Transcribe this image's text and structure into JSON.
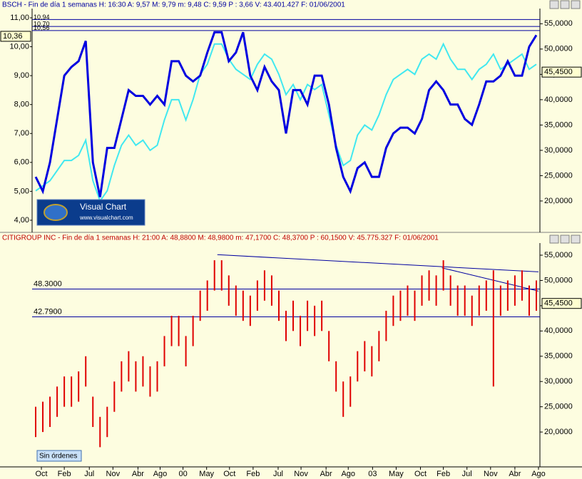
{
  "chart_data": [
    {
      "type": "line",
      "title": "BSCH - Fin de día 1 semanas H: 16:30 A: 9,57 M: 9,79 m: 9,48 C: 9,59 P : 3,66 V: 43.401.427 F: 01/06/2001",
      "xlim": [
        -0.5,
        70.5
      ],
      "ylim": [
        3.58,
        11.32
      ],
      "yticks": [
        {
          "value": 4,
          "label": "4,00"
        },
        {
          "value": 5,
          "label": "5,00"
        },
        {
          "value": 6,
          "label": "6,00"
        },
        {
          "value": 7,
          "label": "7,00"
        },
        {
          "value": 8,
          "label": "8,00"
        },
        {
          "value": 9,
          "label": "9,00"
        },
        {
          "value": 10,
          "label": "10,00"
        },
        {
          "value": 11,
          "label": "11,00"
        }
      ],
      "y2lim": [
        13.8,
        58
      ],
      "y2ticks": [
        {
          "value": 20,
          "label": "20,0000"
        },
        {
          "value": 25,
          "label": "25,0000"
        },
        {
          "value": 30,
          "label": "30,0000"
        },
        {
          "value": 35,
          "label": "35,0000"
        },
        {
          "value": 40,
          "label": "40,0000"
        },
        {
          "value": 45,
          "label": "45,0000"
        },
        {
          "value": 50,
          "label": "50,0000"
        },
        {
          "value": 55,
          "label": "55,0000"
        }
      ],
      "series": [
        {
          "color": "#0000e0",
          "values": [
            5.5,
            5.0,
            6.0,
            7.5,
            9.0,
            9.3,
            9.5,
            10.2,
            6.0,
            4.8,
            6.5,
            6.5,
            7.5,
            8.5,
            8.3,
            8.3,
            8.0,
            8.3,
            8.0,
            9.5,
            9.5,
            9.0,
            8.8,
            9.0,
            9.8,
            10.5,
            10.5,
            9.5,
            9.8,
            10.5,
            9.0,
            8.5,
            9.3,
            8.8,
            8.5,
            7.0,
            8.5,
            8.5,
            8.0,
            9.0,
            9.0,
            8.0,
            6.5,
            5.5,
            5.0,
            5.8,
            6.0,
            5.5,
            5.5,
            6.5,
            7.0,
            7.2,
            7.2,
            7.0,
            7.5,
            8.5,
            8.8,
            8.5,
            8.0,
            8.0,
            7.5,
            7.3,
            8.0,
            8.8,
            8.8,
            9.0,
            9.5,
            9.0,
            9.0,
            10.0,
            10.4
          ]
        },
        {
          "color": "#40e8f0",
          "axis": "y2",
          "values": [
            22,
            23,
            24,
            26,
            28,
            28,
            29,
            32,
            24,
            20,
            22,
            27,
            31,
            33,
            31,
            32,
            30,
            31,
            36,
            40,
            40,
            36,
            40,
            45,
            47,
            51,
            51,
            48,
            46,
            45,
            44,
            47,
            49,
            48,
            45,
            41,
            43,
            40,
            43,
            42,
            43,
            37,
            31,
            27,
            28,
            33,
            35,
            34,
            37,
            41,
            44,
            45,
            46,
            45,
            48,
            49,
            48,
            51,
            48,
            46,
            46,
            44,
            46,
            47,
            49,
            46,
            47,
            48,
            49,
            46,
            47
          ]
        }
      ],
      "hlines": [
        {
          "value": 10.94,
          "label": "10,94"
        },
        {
          "value": 10.7,
          "label": "10,70"
        },
        {
          "value": 10.56,
          "label": "10,56"
        }
      ],
      "last_value": {
        "value": 10.36,
        "label": "10,36"
      },
      "last_value_y2": {
        "value": 45.45,
        "label": "45,4500"
      }
    },
    {
      "type": "hilo",
      "title": "CITIGROUP INC - Fin de día 1 semanas H: 21:00 A: 48,8800 M: 48,9800 m: 47,1700 C: 48,3700 P : 60,1500 V: 45.775.327 F: 01/06/2001",
      "xlim": [
        -0.5,
        70.5
      ],
      "ylim": [
        13.1,
        57.4
      ],
      "yticks": [
        {
          "value": 20,
          "label": "20,0000"
        },
        {
          "value": 25,
          "label": "25,0000"
        },
        {
          "value": 30,
          "label": "30,0000"
        },
        {
          "value": 35,
          "label": "35,0000"
        },
        {
          "value": 40,
          "label": "40,0000"
        },
        {
          "value": 45,
          "label": "45,0000"
        },
        {
          "value": 50,
          "label": "50,0000"
        },
        {
          "value": 55,
          "label": "55,0000"
        }
      ],
      "xticks": [
        {
          "value": 0.8,
          "label": "Oct"
        },
        {
          "value": 4.0,
          "label": "Feb"
        },
        {
          "value": 7.5,
          "label": "Jul"
        },
        {
          "value": 10.8,
          "label": "Nov"
        },
        {
          "value": 14.3,
          "label": "Abr"
        },
        {
          "value": 17.4,
          "label": "Ago"
        },
        {
          "value": 20.6,
          "label": "00"
        },
        {
          "value": 23.9,
          "label": "May"
        },
        {
          "value": 27.1,
          "label": "Oct"
        },
        {
          "value": 30.4,
          "label": "Feb"
        },
        {
          "value": 33.9,
          "label": "Jul"
        },
        {
          "value": 37.1,
          "label": "Nov"
        },
        {
          "value": 40.6,
          "label": "Abr"
        },
        {
          "value": 43.7,
          "label": "Ago"
        },
        {
          "value": 47.1,
          "label": "03"
        },
        {
          "value": 50.4,
          "label": "May"
        },
        {
          "value": 53.8,
          "label": "Oct"
        },
        {
          "value": 57.0,
          "label": "Feb"
        },
        {
          "value": 60.3,
          "label": "Jul"
        },
        {
          "value": 63.6,
          "label": "Nov"
        },
        {
          "value": 67.0,
          "label": "Abr"
        },
        {
          "value": 70.3,
          "label": "Ago"
        }
      ],
      "series": [
        {
          "color": "#e00000",
          "high": [
            25,
            26,
            27,
            29,
            31,
            31,
            32,
            35,
            27,
            23,
            25,
            30,
            34,
            36,
            34,
            35,
            33,
            34,
            39,
            43,
            43,
            39,
            43,
            48,
            50,
            54,
            54,
            51,
            49,
            48,
            47,
            50,
            52,
            51,
            48,
            44,
            46,
            43,
            46,
            45,
            46,
            40,
            34,
            30,
            31,
            36,
            38,
            37,
            40,
            44,
            47,
            48,
            49,
            48,
            51,
            52,
            51,
            54,
            51,
            49,
            49,
            47,
            49,
            50,
            52,
            49,
            50,
            51,
            52,
            49,
            50
          ],
          "low": [
            19,
            20,
            21,
            23,
            25,
            25,
            26,
            29,
            21,
            17,
            19,
            24,
            28,
            30,
            28,
            29,
            27,
            28,
            33,
            37,
            37,
            33,
            37,
            42,
            44,
            48,
            48,
            45,
            43,
            42,
            41,
            44,
            46,
            45,
            42,
            38,
            40,
            37,
            40,
            39,
            40,
            34,
            28,
            23,
            25,
            30,
            32,
            31,
            34,
            38,
            41,
            42,
            43,
            42,
            45,
            46,
            45,
            48,
            45,
            43,
            43,
            41,
            43,
            44,
            29,
            43,
            44,
            45,
            46,
            43,
            44
          ]
        }
      ],
      "hlines": [
        {
          "value": 48.3,
          "label": "48.3000"
        },
        {
          "value": 42.79,
          "label": "42.7900"
        }
      ],
      "trendlines": [
        {
          "x": [
            25.4,
            70.3
          ],
          "y": [
            55.1,
            51.7
          ]
        },
        {
          "x": [
            56.8,
            70.3
          ],
          "y": [
            52.5,
            47.9
          ]
        }
      ],
      "last_value": {
        "value": 45.45,
        "label": "45,4500"
      }
    }
  ],
  "logo": {
    "title": "Visual Chart",
    "url": "www.visualchart.com"
  },
  "status": "Sin órdenes"
}
